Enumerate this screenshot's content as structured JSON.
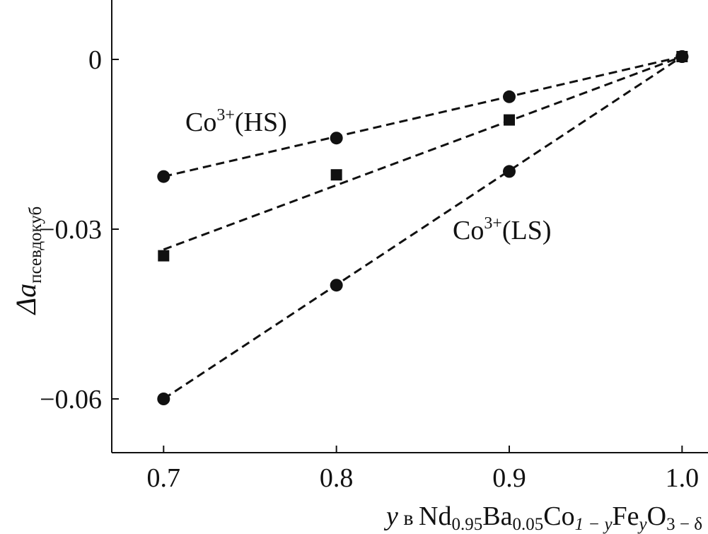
{
  "chart_data": {
    "type": "scatter",
    "x_ticks": [
      "0.7",
      "0.8",
      "0.9",
      "1.0"
    ],
    "y_ticks": [
      "0",
      "−0.03",
      "−0.06"
    ],
    "x_tick_values": [
      0.7,
      0.8,
      0.9,
      1.0
    ],
    "y_tick_values": [
      0,
      -0.03,
      -0.06
    ],
    "xlim": [
      0.67,
      1.015
    ],
    "ylim": [
      -0.0695,
      0.0105
    ],
    "ylabel": {
      "main": "Δa",
      "sub": "псевдокуб"
    },
    "xlabel": {
      "y": "y",
      "v": " в ",
      "nd": "Nd",
      "nd_sub": "0.95",
      "ba": "Ba",
      "ba_sub": "0.05",
      "co": "Co",
      "co_sub": "1 − y",
      "fe": "Fe",
      "fe_sub": "y",
      "o": "O",
      "o_sub": "3 − δ"
    },
    "series": [
      {
        "name": "Co3+(HS)",
        "label_base": "Co",
        "label_sup": "3+",
        "label_rest": "(HS)",
        "marker": "circle",
        "x": [
          0.7,
          0.8,
          0.9,
          1.0
        ],
        "y": [
          -0.0207,
          -0.0139,
          -0.0066,
          0.0005
        ],
        "fit": [
          [
            0.7,
            -0.0207
          ],
          [
            1.0,
            0.0005
          ]
        ]
      },
      {
        "marker": "square",
        "x": [
          0.7,
          0.8,
          0.9,
          1.0
        ],
        "y": [
          -0.0347,
          -0.0204,
          -0.0107,
          0.0005
        ],
        "fit": [
          [
            0.7,
            -0.0336
          ],
          [
            1.0,
            0.0005
          ]
        ]
      },
      {
        "name": "Co3+(LS)",
        "label_base": "Co",
        "label_sup": "3+",
        "label_rest": "(LS)",
        "marker": "circle",
        "x": [
          0.7,
          0.8,
          0.9,
          1.0
        ],
        "y": [
          -0.06,
          -0.0399,
          -0.0198,
          0.0005
        ],
        "fit": [
          [
            0.7,
            -0.06
          ],
          [
            1.0,
            0.0005
          ]
        ]
      }
    ],
    "grid": false,
    "legend": "none"
  }
}
